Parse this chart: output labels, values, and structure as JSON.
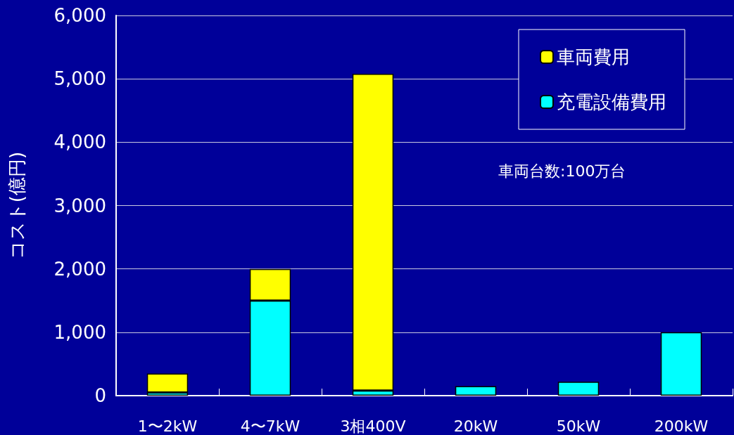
{
  "chart_data": {
    "type": "bar",
    "stacked": true,
    "ylabel": "コスト(億円)",
    "categories": [
      "1〜2kW",
      "4〜7kW",
      "3相400V",
      "20kW",
      "50kW",
      "200kW"
    ],
    "series": [
      {
        "name": "充電設備費用",
        "color": "#00ffff",
        "values": [
          50,
          1500,
          80,
          150,
          220,
          1000
        ]
      },
      {
        "name": "車両費用",
        "color": "#ffff00",
        "values": [
          300,
          500,
          5000,
          null,
          null,
          null
        ]
      }
    ],
    "ylim": [
      0,
      6000
    ],
    "yticks": [
      {
        "value": 0,
        "label": "0"
      },
      {
        "value": 1000,
        "label": "1,000"
      },
      {
        "value": 2000,
        "label": "2,000"
      },
      {
        "value": 3000,
        "label": "3,000"
      },
      {
        "value": 4000,
        "label": "4,000"
      },
      {
        "value": 5000,
        "label": "5,000"
      },
      {
        "value": 6000,
        "label": "6,000"
      }
    ],
    "grid": "y",
    "legend": "top right",
    "annotations": [
      "車両台数:100万台"
    ]
  }
}
